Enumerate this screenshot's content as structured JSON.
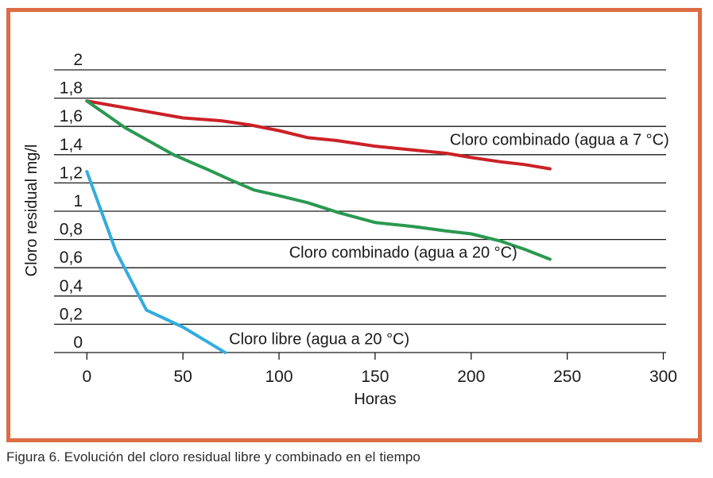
{
  "figure": {
    "border_color": "#dd6c44",
    "background": "#ffffff",
    "caption": "Figura 6. Evolución del cloro residual libre y combinado en el tiempo"
  },
  "chart_data": {
    "type": "line",
    "title": "",
    "xlabel": "Horas",
    "ylabel": "Cloro residual mg/l",
    "xlim": [
      0,
      300
    ],
    "ylim": [
      0,
      2
    ],
    "grid": "horizontal-only",
    "legend_position": "inline-labels-beside-curves",
    "x_ticks": {
      "values": [
        0,
        50,
        100,
        150,
        200,
        250,
        300
      ],
      "labels": [
        "0",
        "50",
        "100",
        "150",
        "200",
        "250",
        "300"
      ]
    },
    "y_ticks": {
      "values": [
        0,
        0.2,
        0.4,
        0.6,
        0.8,
        1.0,
        1.2,
        1.4,
        1.6,
        1.8,
        2.0
      ],
      "labels": [
        "0",
        "0,2",
        "0,4",
        "0,6",
        "0,8",
        "1",
        "1,2",
        "1,4",
        "1,6",
        "1,8",
        "2"
      ]
    },
    "text_color": "#1a1a1a",
    "grid_color": "#1a1a1a",
    "series": [
      {
        "id": "combinado-7c",
        "name": "Cloro combinado (agua a 7 °C)",
        "color": "#cb2127",
        "points": [
          [
            0,
            1.78
          ],
          [
            25,
            1.72
          ],
          [
            50,
            1.66
          ],
          [
            70,
            1.64
          ],
          [
            85,
            1.61
          ],
          [
            100,
            1.57
          ],
          [
            115,
            1.52
          ],
          [
            130,
            1.5
          ],
          [
            150,
            1.46
          ],
          [
            165,
            1.44
          ],
          [
            187,
            1.41
          ],
          [
            200,
            1.38
          ],
          [
            215,
            1.35
          ],
          [
            228,
            1.33
          ],
          [
            241,
            1.3
          ]
        ],
        "label": {
          "x": 303,
          "y": 1.47,
          "anchor": "end"
        }
      },
      {
        "id": "combinado-20c",
        "name": "Cloro combinado (agua a 20 °C)",
        "color": "#2a9950",
        "points": [
          [
            0,
            1.78
          ],
          [
            20,
            1.59
          ],
          [
            45,
            1.4
          ],
          [
            62,
            1.3
          ],
          [
            75,
            1.22
          ],
          [
            87,
            1.15
          ],
          [
            100,
            1.11
          ],
          [
            115,
            1.06
          ],
          [
            131,
            0.99
          ],
          [
            150,
            0.92
          ],
          [
            171,
            0.89
          ],
          [
            187,
            0.86
          ],
          [
            200,
            0.84
          ],
          [
            215,
            0.79
          ],
          [
            228,
            0.73
          ],
          [
            241,
            0.66
          ]
        ],
        "label": {
          "x": 224,
          "y": 0.67,
          "anchor": "end"
        }
      },
      {
        "id": "libre-20c",
        "name": "Cloro libre (agua a 20 °C)",
        "color": "#34acdd",
        "points": [
          [
            0,
            1.28
          ],
          [
            15,
            0.72
          ],
          [
            31,
            0.3
          ],
          [
            50,
            0.18
          ],
          [
            72,
            0
          ]
        ],
        "label": {
          "x": 74,
          "y": 0.06,
          "anchor": "start"
        }
      }
    ]
  }
}
